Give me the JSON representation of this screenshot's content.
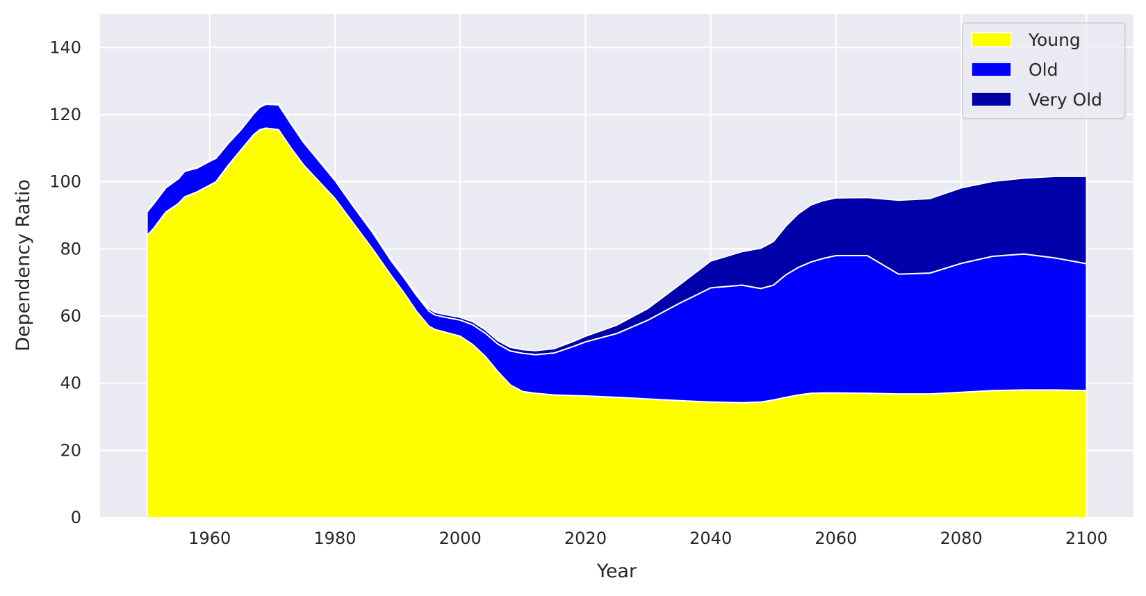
{
  "chart_data": {
    "type": "area",
    "stacked": true,
    "title": "",
    "xlabel": "Year",
    "ylabel": "Dependency Ratio",
    "xlim": [
      1942.5,
      2107.5
    ],
    "ylim": [
      0,
      150
    ],
    "xticks": [
      1960,
      1980,
      2000,
      2020,
      2040,
      2060,
      2080,
      2100
    ],
    "yticks": [
      0,
      20,
      40,
      60,
      80,
      100,
      120,
      140
    ],
    "grid": true,
    "legend_position": "top-right",
    "x": [
      1950,
      1951,
      1953,
      1955,
      1956,
      1958,
      1960,
      1961,
      1963,
      1965,
      1967,
      1968,
      1969,
      1971,
      1973,
      1975,
      1977,
      1980,
      1983,
      1986,
      1989,
      1991,
      1993,
      1995,
      1996,
      1998,
      2000,
      2002,
      2004,
      2006,
      2008,
      2010,
      2012,
      2015,
      2018,
      2020,
      2025,
      2030,
      2035,
      2040,
      2045,
      2048,
      2050,
      2052,
      2054,
      2056,
      2058,
      2060,
      2065,
      2070,
      2075,
      2080,
      2085,
      2090,
      2095,
      2100
    ],
    "series": [
      {
        "name": "Young",
        "color": "#ffff00",
        "values": [
          84,
          86,
          91,
          93.5,
          95.5,
          97,
          99,
          100,
          105,
          109.5,
          114,
          115.5,
          116,
          115.5,
          110,
          105,
          101,
          95,
          87.5,
          80,
          72,
          67,
          61.5,
          57,
          56,
          55,
          54,
          51.5,
          48,
          43.5,
          39.5,
          37.5,
          37,
          36.5,
          36.3,
          36.2,
          35.8,
          35.3,
          34.8,
          34.4,
          34.2,
          34.4,
          35,
          35.8,
          36.5,
          37,
          37.1,
          37.1,
          37,
          36.8,
          36.8,
          37.3,
          37.8,
          38,
          38,
          37.8
        ]
      },
      {
        "name": "Old",
        "color": "#0000ff",
        "values": [
          7,
          7.3,
          7.2,
          7.4,
          7.6,
          7.1,
          7.1,
          7,
          6.5,
          6,
          6.2,
          6.7,
          7.1,
          7.4,
          7.2,
          6.7,
          6.2,
          5.4,
          5,
          4.9,
          4.4,
          4.5,
          4.7,
          4.5,
          4.3,
          4.5,
          4.8,
          5.9,
          6.9,
          8.2,
          10.1,
          11.4,
          11.5,
          12.5,
          14.6,
          16.1,
          19,
          23.5,
          29,
          34,
          35,
          33.8,
          34.2,
          36.5,
          38,
          39.1,
          40.1,
          40.9,
          41,
          35.7,
          36,
          38.4,
          40,
          40.5,
          39.3,
          37.8
        ]
      },
      {
        "name": "Very Old",
        "color": "#0000aa",
        "values": [
          0.2,
          0.2,
          0.2,
          0.2,
          0.2,
          0.2,
          0.2,
          0.2,
          0.2,
          0.2,
          0.2,
          0.2,
          0.2,
          0.2,
          0.2,
          0.2,
          0.2,
          0.3,
          0.3,
          0.4,
          0.5,
          0.6,
          0.6,
          0.7,
          0.8,
          0.8,
          0.8,
          0.9,
          1,
          1,
          1.1,
          1.1,
          1.2,
          1.3,
          1.5,
          1.7,
          2.5,
          3.5,
          5.5,
          8,
          10,
          12,
          13,
          14.5,
          16,
          17,
          17.2,
          17.2,
          17.3,
          22,
          22.2,
          22.5,
          22.3,
          22.6,
          24.3,
          26
        ]
      }
    ]
  }
}
